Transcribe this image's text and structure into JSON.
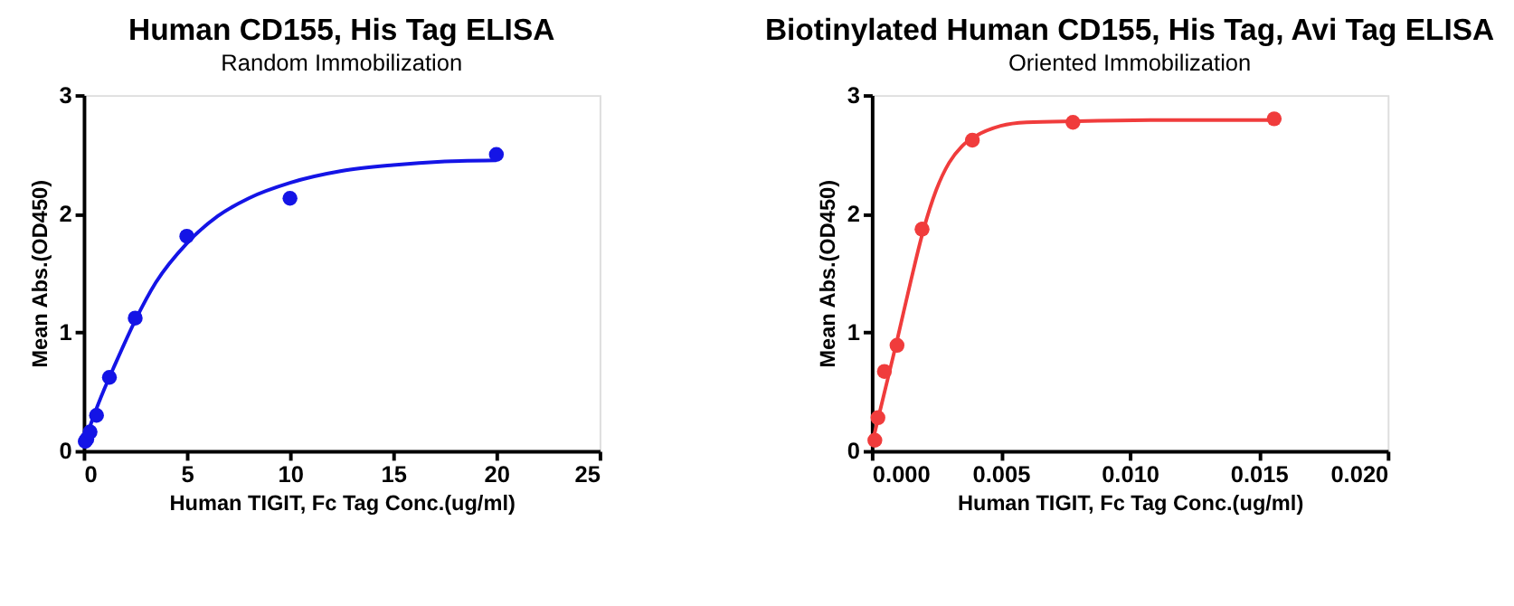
{
  "chart_data": [
    {
      "type": "scatter",
      "title": "Human CD155, His Tag ELISA",
      "subtitle": "Random Immobilization",
      "xlabel": "Human TIGIT, Fc Tag Conc.(ug/ml)",
      "ylabel": "Mean Abs.(OD450)",
      "xlim": [
        0,
        25
      ],
      "xticks": [
        0,
        5,
        10,
        15,
        20,
        25
      ],
      "ylim": [
        0,
        3
      ],
      "yticks": [
        0,
        1,
        2,
        3
      ],
      "grid": false,
      "series": [
        {
          "type": "line",
          "color": "#1414e6",
          "line_style": "solid",
          "x": [
            0,
            0.5,
            1,
            1.5,
            2.5,
            3.5,
            5,
            6.5,
            8,
            10,
            12.5,
            15,
            17.5,
            20
          ],
          "values": [
            0.05,
            0.3,
            0.52,
            0.72,
            1.1,
            1.42,
            1.75,
            1.98,
            2.13,
            2.26,
            2.36,
            2.41,
            2.44,
            2.45
          ]
        },
        {
          "color": "#1414e6",
          "marker": "circle",
          "x": [
            0.078,
            0.156,
            0.3125,
            0.625,
            1.25,
            2.5,
            5,
            10,
            20
          ],
          "values": [
            0.08,
            0.1,
            0.16,
            0.3,
            0.62,
            1.12,
            1.81,
            2.13,
            2.5
          ]
        }
      ]
    },
    {
      "type": "scatter",
      "title": "Biotinylated Human CD155, His Tag, Avi Tag ELISA",
      "subtitle": "Oriented Immobilization",
      "xlabel": "Human TIGIT, Fc Tag Conc.(ug/ml)",
      "ylabel": "Mean Abs.(OD450)",
      "xlim": [
        0,
        0.02
      ],
      "xticks": [
        {
          "value": 0,
          "label": "0.000"
        },
        {
          "value": 0.005,
          "label": "0.005"
        },
        {
          "value": 0.01,
          "label": "0.010"
        },
        {
          "value": 0.015,
          "label": "0.015"
        },
        {
          "value": 0.02,
          "label": "0.020"
        }
      ],
      "ylim": [
        0,
        3
      ],
      "yticks": [
        0,
        1,
        2,
        3
      ],
      "grid": false,
      "series": [
        {
          "type": "line",
          "color": "#f03c3c",
          "line_style": "solid",
          "x": [
            0,
            0.0005,
            0.001,
            0.0015,
            0.002,
            0.0025,
            0.003,
            0.0035,
            0.004,
            0.005,
            0.006,
            0.008,
            0.012,
            0.0156
          ],
          "values": [
            0.05,
            0.5,
            0.95,
            1.42,
            1.86,
            2.2,
            2.43,
            2.57,
            2.65,
            2.74,
            2.77,
            2.78,
            2.79,
            2.79
          ]
        },
        {
          "color": "#f03c3c",
          "marker": "circle",
          "x": [
            0.00012,
            0.00024,
            0.00049,
            0.00098,
            0.00195,
            0.0039,
            0.0078,
            0.0156
          ],
          "values": [
            0.09,
            0.28,
            0.67,
            0.89,
            1.87,
            2.62,
            2.77,
            2.8
          ]
        }
      ]
    }
  ]
}
